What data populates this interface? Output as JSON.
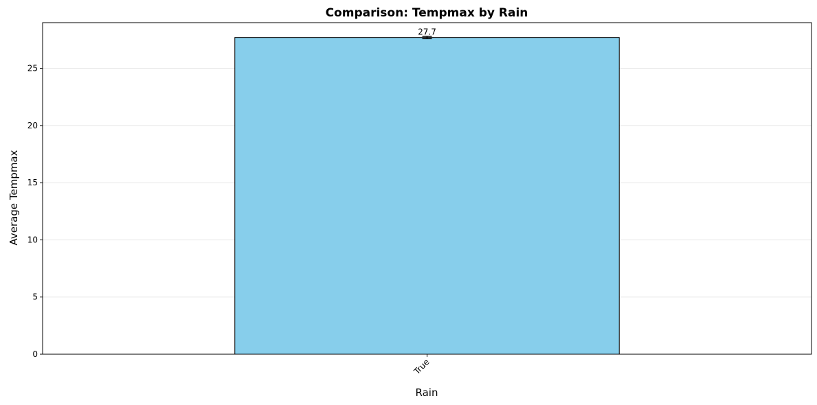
{
  "chart_data": {
    "type": "bar",
    "title": "Comparison: Tempmax by Rain",
    "xlabel": "Rain",
    "ylabel": "Average Tempmax",
    "categories": [
      "True"
    ],
    "values": [
      27.7
    ],
    "value_labels": [
      "27.7"
    ],
    "error": [
      0.1
    ],
    "ylim": [
      0,
      29
    ],
    "yticks": [
      0,
      5,
      10,
      15,
      20,
      25
    ],
    "grid": "y",
    "bar_color": "#87CEEB",
    "edge_color": "#000000",
    "xtick_rotation_deg": 45
  }
}
